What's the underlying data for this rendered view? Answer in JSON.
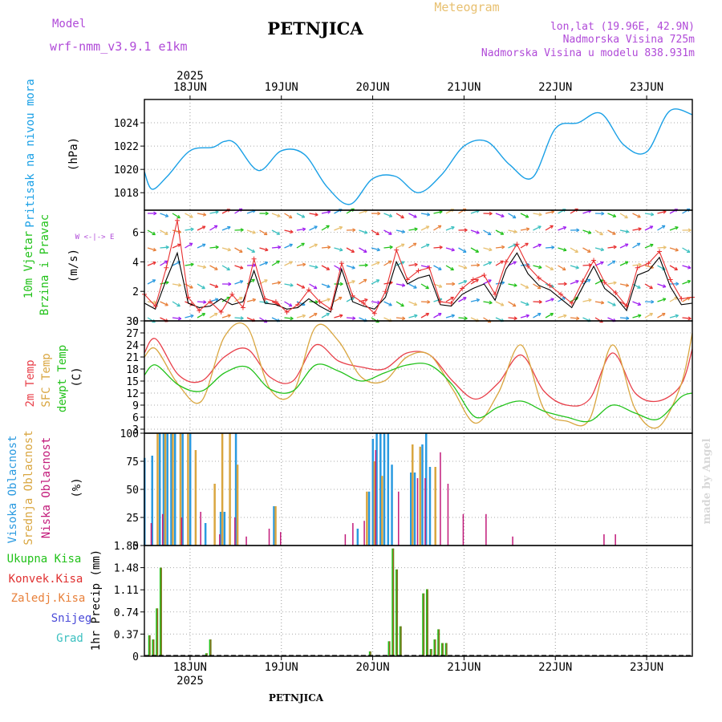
{
  "header": {
    "model_label": "Model",
    "model_name": "wrf-nmm_v3.9.1  e1km",
    "station": "PETNJICA",
    "product": "Meteogram",
    "coords": "lon,lat (19.96E, 42.9N)",
    "elevation": "Nadmorska Visina 725m",
    "model_elevation": "Nadmorska Visina u modelu 838.931m"
  },
  "footer": {
    "station": "PETNJICA",
    "credit": "made by Angel"
  },
  "time_axis": {
    "year": "2025",
    "days": [
      "18JUN",
      "19JUN",
      "20JUN",
      "21JUN",
      "22JUN",
      "23JUN"
    ],
    "start": "2025-06-17T12:00",
    "end": "2025-06-23T12:00"
  },
  "colors": {
    "pressure": "#1aa0e6",
    "temp": "#e8404a",
    "sfc_temp": "#d9a640",
    "dewpt": "#22c21a",
    "high_cloud": "#2a9ae0",
    "mid_cloud": "#d9a640",
    "low_cloud": "#c21a7a",
    "precip_total": "#22c21a",
    "precip_conv": "#e03030",
    "precip_frozen": "#e8803a",
    "snow": "#4a4ad8",
    "hail": "#3cc0c0",
    "wind_black": "#000000",
    "wind_red": "#e83030"
  },
  "chart_data": [
    {
      "type": "line",
      "panel": "pressure",
      "ylabel": [
        "Pritisak na nivou mora",
        "(hPa)"
      ],
      "ylim": [
        1016.5,
        1026
      ],
      "yticks": [
        1018,
        1020,
        1022,
        1024
      ],
      "series": [
        {
          "x": [
            "2025-06-17T12:00",
            "2025-06-17T14:00",
            "2025-06-17T18:00",
            "2025-06-18T00:00",
            "2025-06-18T06:00",
            "2025-06-18T09:00",
            "2025-06-18T12:00",
            "2025-06-18T18:00",
            "2025-06-19T00:00",
            "2025-06-19T06:00",
            "2025-06-19T12:00",
            "2025-06-19T18:00",
            "2025-06-20T00:00",
            "2025-06-20T06:00",
            "2025-06-20T12:00",
            "2025-06-20T18:00",
            "2025-06-21T00:00",
            "2025-06-21T06:00",
            "2025-06-21T12:00",
            "2025-06-21T18:00",
            "2025-06-22T00:00",
            "2025-06-22T06:00",
            "2025-06-22T12:00",
            "2025-06-22T18:00",
            "2025-06-23T00:00",
            "2025-06-23T06:00",
            "2025-06-23T12:00"
          ],
          "values": [
            1019.8,
            1018.3,
            1019.4,
            1021.6,
            1021.9,
            1022.4,
            1022.2,
            1019.9,
            1021.6,
            1021.3,
            1018.5,
            1017.0,
            1019.2,
            1019.4,
            1018.0,
            1019.5,
            1022.0,
            1022.4,
            1020.4,
            1019.3,
            1023.5,
            1024.0,
            1024.8,
            1022.1,
            1021.5,
            1025.0,
            1024.7
          ]
        }
      ]
    },
    {
      "type": "line",
      "panel": "wind",
      "ylabel": [
        "10m Vjetar",
        "Brzina i Pravac",
        "(m/s)"
      ],
      "compass": "W <-|-> E",
      "ylim": [
        0,
        7.5
      ],
      "yticks": [
        0,
        2,
        4,
        6
      ],
      "series": [
        {
          "name": "black",
          "values": [
            1.2,
            0.8,
            2.8,
            4.6,
            1.2,
            0.9,
            1.0,
            1.5,
            1.1,
            1.3,
            3.4,
            1.2,
            1.1,
            0.8,
            0.9,
            1.5,
            1.0,
            0.6,
            3.5,
            1.3,
            1.0,
            0.8,
            1.6,
            4.0,
            2.5,
            2.9,
            3.1,
            1.1,
            1.0,
            1.8,
            2.2,
            2.5,
            1.4,
            3.5,
            4.6,
            3.2,
            2.4,
            2.1,
            1.5,
            0.9,
            2.3,
            3.7,
            2.2,
            1.6,
            0.7,
            3.1,
            3.4,
            4.3,
            2.3,
            1.1,
            1.2
          ]
        },
        {
          "name": "red",
          "values": [
            1.8,
            1.0,
            3.6,
            6.8,
            1.6,
            0.7,
            1.3,
            0.6,
            1.8,
            0.9,
            4.2,
            1.5,
            1.3,
            0.6,
            1.1,
            2.1,
            1.3,
            0.8,
            3.9,
            1.7,
            1.2,
            0.5,
            2.0,
            4.8,
            2.8,
            3.4,
            3.6,
            1.3,
            1.2,
            2.2,
            2.8,
            3.1,
            1.8,
            4.0,
            5.2,
            3.7,
            2.9,
            2.4,
            1.8,
            1.2,
            2.7,
            4.1,
            2.6,
            1.9,
            1.0,
            3.6,
            3.9,
            4.7,
            2.8,
            1.5,
            1.6
          ]
        }
      ]
    },
    {
      "type": "line",
      "panel": "temperature",
      "ylabel": [
        "2m Temp",
        "SFC Temp",
        "dewpt Temp",
        "(C)"
      ],
      "ylim": [
        2,
        30
      ],
      "yticks": [
        3,
        6,
        9,
        12,
        15,
        18,
        21,
        24,
        27,
        30
      ],
      "series": [
        {
          "name": "2m Temp",
          "x": [
            "2025-06-17T12:00",
            "2025-06-17T15:00",
            "2025-06-17T21:00",
            "2025-06-18T03:00",
            "2025-06-18T09:00",
            "2025-06-18T15:00",
            "2025-06-18T21:00",
            "2025-06-19T03:00",
            "2025-06-19T09:00",
            "2025-06-19T15:00",
            "2025-06-19T21:00",
            "2025-06-20T03:00",
            "2025-06-20T09:00",
            "2025-06-20T15:00",
            "2025-06-20T21:00",
            "2025-06-21T03:00",
            "2025-06-21T09:00",
            "2025-06-21T15:00",
            "2025-06-21T21:00",
            "2025-06-22T03:00",
            "2025-06-22T09:00",
            "2025-06-22T15:00",
            "2025-06-22T21:00",
            "2025-06-23T03:00",
            "2025-06-23T09:00",
            "2025-06-23T12:00"
          ],
          "values": [
            22,
            25.5,
            16.5,
            15,
            21,
            23,
            16,
            15,
            24,
            20,
            18.5,
            18,
            22,
            21.5,
            15,
            10.5,
            14.5,
            21.5,
            12.5,
            9,
            10.5,
            22,
            12,
            10,
            14,
            23
          ]
        },
        {
          "name": "SFC Temp",
          "x": [
            "2025-06-17T12:00",
            "2025-06-17T15:00",
            "2025-06-17T21:00",
            "2025-06-18T03:00",
            "2025-06-18T09:00",
            "2025-06-18T15:00",
            "2025-06-18T21:00",
            "2025-06-19T03:00",
            "2025-06-19T09:00",
            "2025-06-19T15:00",
            "2025-06-19T21:00",
            "2025-06-20T03:00",
            "2025-06-20T09:00",
            "2025-06-20T15:00",
            "2025-06-20T21:00",
            "2025-06-21T03:00",
            "2025-06-21T09:00",
            "2025-06-21T15:00",
            "2025-06-21T21:00",
            "2025-06-22T03:00",
            "2025-06-22T09:00",
            "2025-06-22T15:00",
            "2025-06-22T21:00",
            "2025-06-23T03:00",
            "2025-06-23T09:00",
            "2025-06-23T12:00"
          ],
          "values": [
            21,
            23,
            14,
            10,
            26,
            28.5,
            13,
            12,
            28.5,
            25,
            16,
            15,
            21,
            21.5,
            13,
            4.5,
            12,
            24,
            8,
            5,
            5.5,
            24,
            8,
            3.5,
            14,
            27
          ]
        },
        {
          "name": "dewpt Temp",
          "x": [
            "2025-06-17T12:00",
            "2025-06-17T15:00",
            "2025-06-17T21:00",
            "2025-06-18T03:00",
            "2025-06-18T09:00",
            "2025-06-18T15:00",
            "2025-06-18T21:00",
            "2025-06-19T03:00",
            "2025-06-19T09:00",
            "2025-06-19T15:00",
            "2025-06-19T21:00",
            "2025-06-20T03:00",
            "2025-06-20T09:00",
            "2025-06-20T15:00",
            "2025-06-20T21:00",
            "2025-06-21T03:00",
            "2025-06-21T09:00",
            "2025-06-21T15:00",
            "2025-06-21T21:00",
            "2025-06-22T03:00",
            "2025-06-22T09:00",
            "2025-06-22T15:00",
            "2025-06-22T21:00",
            "2025-06-23T03:00",
            "2025-06-23T09:00",
            "2025-06-23T12:00"
          ],
          "values": [
            16.5,
            19,
            14,
            12.5,
            17,
            18.5,
            13,
            12.5,
            19,
            17.5,
            15,
            17,
            19,
            19,
            14,
            6,
            8.5,
            10,
            7.5,
            6,
            5,
            9,
            7,
            5.5,
            11,
            12
          ]
        }
      ]
    },
    {
      "type": "bar",
      "panel": "cloud",
      "ylabel": [
        "Visoka Oblacnost",
        "Srednja Oblacnost",
        "Niska Oblacnost",
        "(%)"
      ],
      "ylim": [
        0,
        100
      ],
      "yticks": [
        0,
        25,
        50,
        75,
        100
      ],
      "series": [
        {
          "name": "Visoka Oblacnost",
          "x": [
            "2025-06-17T12:00",
            "2025-06-17T14:00",
            "2025-06-17T16:00",
            "2025-06-17T17:00",
            "2025-06-17T18:00",
            "2025-06-17T19:00",
            "2025-06-17T20:00",
            "2025-06-17T22:00",
            "2025-06-18T00:00",
            "2025-06-18T04:00",
            "2025-06-18T08:00",
            "2025-06-18T09:00",
            "2025-06-18T12:00",
            "2025-06-18T22:00",
            "2025-06-19T20:00",
            "2025-06-19T23:00",
            "2025-06-20T00:00",
            "2025-06-20T01:00",
            "2025-06-20T02:00",
            "2025-06-20T03:00",
            "2025-06-20T04:00",
            "2025-06-20T05:00",
            "2025-06-20T10:00",
            "2025-06-20T11:00",
            "2025-06-20T13:00",
            "2025-06-20T14:00",
            "2025-06-20T15:00"
          ],
          "values": [
            78,
            80,
            100,
            100,
            100,
            100,
            100,
            100,
            100,
            20,
            30,
            30,
            100,
            35,
            15,
            48,
            95,
            100,
            100,
            100,
            100,
            72,
            65,
            65,
            90,
            100,
            70
          ]
        },
        {
          "name": "Srednja Oblacnost",
          "x": [
            "2025-06-17T15:00",
            "2025-06-17T17:00",
            "2025-06-17T19:00",
            "2025-06-17T21:00",
            "2025-06-17T23:00",
            "2025-06-18T01:00",
            "2025-06-18T06:00",
            "2025-06-18T08:00",
            "2025-06-18T10:00",
            "2025-06-18T12:00",
            "2025-06-18T22:00",
            "2025-06-19T22:00",
            "2025-06-20T00:00",
            "2025-06-20T02:00",
            "2025-06-20T10:00",
            "2025-06-20T12:00",
            "2025-06-20T16:00"
          ],
          "values": [
            100,
            100,
            100,
            100,
            100,
            85,
            55,
            100,
            100,
            72,
            35,
            48,
            75,
            62,
            90,
            88,
            70
          ]
        },
        {
          "name": "Niska Oblacnost",
          "x": [
            "2025-06-17T13:00",
            "2025-06-17T16:00",
            "2025-06-17T21:00",
            "2025-06-18T02:00",
            "2025-06-18T07:00",
            "2025-06-18T11:00",
            "2025-06-18T14:00",
            "2025-06-18T20:00",
            "2025-06-18T23:00",
            "2025-06-19T16:00",
            "2025-06-19T18:00",
            "2025-06-19T21:00",
            "2025-06-20T00:00",
            "2025-06-20T06:00",
            "2025-06-20T11:00",
            "2025-06-20T13:00",
            "2025-06-20T17:00",
            "2025-06-20T19:00",
            "2025-06-20T23:00",
            "2025-06-21T05:00",
            "2025-06-21T12:00",
            "2025-06-22T12:00",
            "2025-06-22T15:00"
          ],
          "values": [
            20,
            28,
            25,
            30,
            10,
            25,
            8,
            15,
            12,
            10,
            20,
            22,
            85,
            48,
            60,
            60,
            83,
            55,
            28,
            28,
            8,
            10,
            10
          ]
        }
      ]
    },
    {
      "type": "bar",
      "panel": "precipitation",
      "ylabel": [
        "1hr Precip (mm)"
      ],
      "legend": [
        "Ukupna Kisa",
        "Konvek.Kisa",
        "Zaledj.Kisa",
        "Snijeg",
        "Grad"
      ],
      "ylim": [
        0,
        1.85
      ],
      "yticks": [
        "0",
        "0.37",
        "0.74",
        "1.11",
        "1.48",
        "1.85"
      ],
      "series": [
        {
          "name": "Ukupna Kisa",
          "x": [
            "2025-06-17T13:00",
            "2025-06-17T14:00",
            "2025-06-17T15:00",
            "2025-06-17T16:00",
            "2025-06-18T04:00",
            "2025-06-18T05:00",
            "2025-06-19T23:00",
            "2025-06-20T04:00",
            "2025-06-20T05:00",
            "2025-06-20T06:00",
            "2025-06-20T07:00",
            "2025-06-20T13:00",
            "2025-06-20T14:00",
            "2025-06-20T15:00",
            "2025-06-20T16:00",
            "2025-06-20T17:00",
            "2025-06-20T18:00",
            "2025-06-20T19:00"
          ],
          "values": [
            0.35,
            0.28,
            0.8,
            1.48,
            0.05,
            0.28,
            0.08,
            0.25,
            1.8,
            1.45,
            0.5,
            1.05,
            1.12,
            0.12,
            0.28,
            0.45,
            0.22,
            0.22
          ]
        }
      ]
    }
  ]
}
